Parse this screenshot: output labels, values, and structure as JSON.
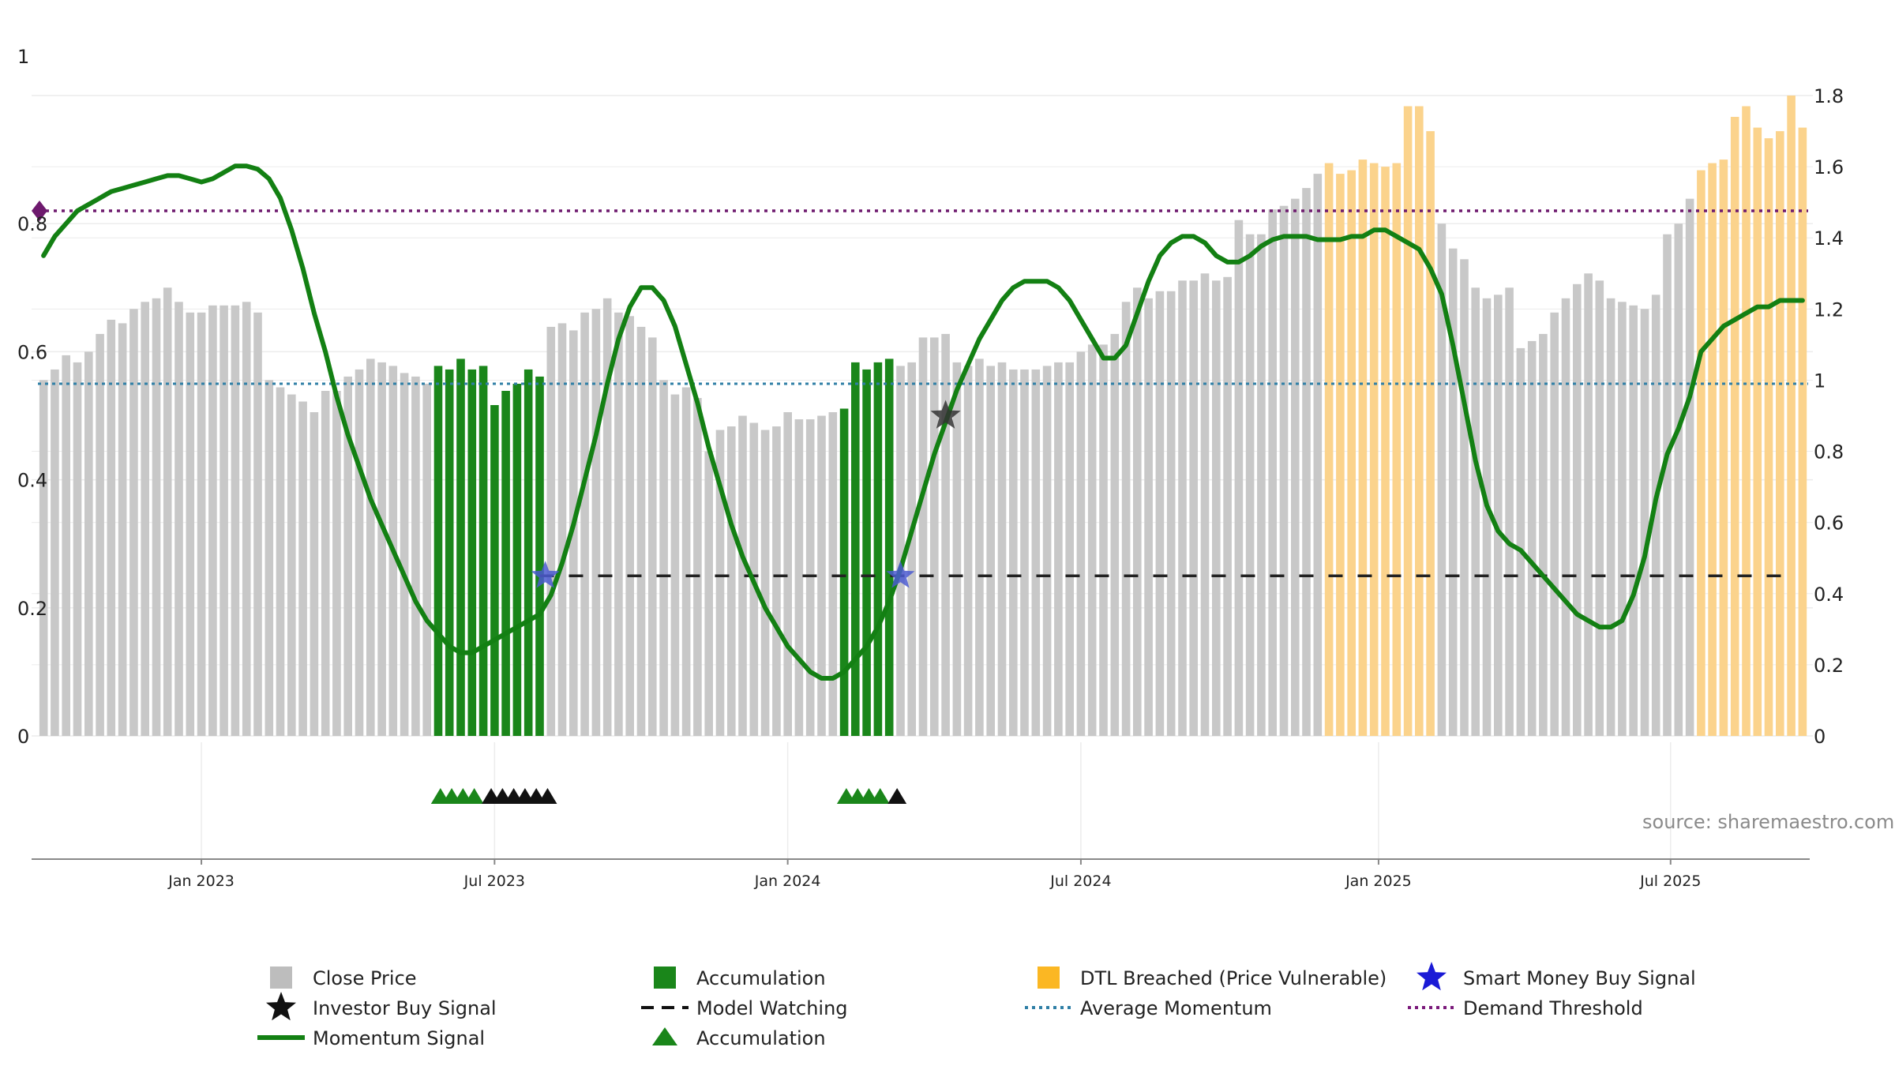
{
  "chart_data": {
    "type": "bar",
    "source": "source: sharemaestro.com",
    "left_axis": {
      "min": 0,
      "max": 1,
      "ticks": [
        "0",
        "0.2",
        "0.4",
        "0.6",
        "0.8",
        "1"
      ]
    },
    "right_axis": {
      "min": 0,
      "max": 1.8,
      "ticks": [
        "0",
        "0.2",
        "0.4",
        "0.6",
        "0.8",
        "1",
        "1.2",
        "1.4",
        "1.6",
        "1.8"
      ]
    },
    "date_ticks": [
      {
        "label": "Jan 2023",
        "week": 14
      },
      {
        "label": "Jul 2023",
        "week": 40
      },
      {
        "label": "Jan 2024",
        "week": 66
      },
      {
        "label": "Jul 2024",
        "week": 92
      },
      {
        "label": "Jan 2025",
        "week": 118.4
      },
      {
        "label": "Jul 2025",
        "week": 144.3
      }
    ],
    "close_price": [
      1.0,
      1.03,
      1.07,
      1.05,
      1.08,
      1.13,
      1.17,
      1.16,
      1.2,
      1.22,
      1.23,
      1.26,
      1.22,
      1.19,
      1.19,
      1.21,
      1.21,
      1.21,
      1.22,
      1.19,
      1.0,
      0.98,
      0.96,
      0.94,
      0.91,
      0.97,
      0.97,
      1.01,
      1.03,
      1.06,
      1.05,
      1.04,
      1.02,
      1.01,
      0.99,
      1.04,
      1.03,
      1.06,
      1.03,
      1.04,
      0.93,
      0.97,
      0.99,
      1.03,
      1.01,
      1.15,
      1.16,
      1.14,
      1.19,
      1.2,
      1.23,
      1.19,
      1.18,
      1.15,
      1.12,
      1.0,
      0.96,
      0.98,
      0.95,
      0.8,
      0.86,
      0.87,
      0.9,
      0.88,
      0.86,
      0.87,
      0.91,
      0.89,
      0.89,
      0.9,
      0.91,
      0.92,
      1.05,
      1.03,
      1.05,
      1.06,
      1.04,
      1.05,
      1.12,
      1.12,
      1.13,
      1.05,
      1.04,
      1.06,
      1.04,
      1.05,
      1.03,
      1.03,
      1.03,
      1.04,
      1.05,
      1.05,
      1.08,
      1.1,
      1.1,
      1.13,
      1.22,
      1.26,
      1.23,
      1.25,
      1.25,
      1.28,
      1.28,
      1.3,
      1.28,
      1.29,
      1.45,
      1.41,
      1.41,
      1.48,
      1.49,
      1.51,
      1.54,
      1.58,
      1.61,
      1.58,
      1.59,
      1.62,
      1.61,
      1.6,
      1.61,
      1.77,
      1.77,
      1.7,
      1.44,
      1.37,
      1.34,
      1.26,
      1.23,
      1.24,
      1.26,
      1.09,
      1.11,
      1.13,
      1.19,
      1.23,
      1.27,
      1.3,
      1.28,
      1.23,
      1.22,
      1.21,
      1.2,
      1.24,
      1.41,
      1.44,
      1.51,
      1.59,
      1.61,
      1.62,
      1.74,
      1.77,
      1.71,
      1.68,
      1.7,
      1.8,
      1.71
    ],
    "accumulation_weeks": [
      [
        35,
        44
      ],
      [
        71,
        75
      ]
    ],
    "dtl_breached_weeks": [
      [
        114,
        123
      ],
      [
        147,
        157
      ]
    ],
    "momentum_signal": [
      0.75,
      0.78,
      0.8,
      0.82,
      0.83,
      0.84,
      0.85,
      0.855,
      0.86,
      0.865,
      0.87,
      0.875,
      0.875,
      0.87,
      0.865,
      0.87,
      0.88,
      0.89,
      0.89,
      0.885,
      0.87,
      0.84,
      0.79,
      0.73,
      0.66,
      0.6,
      0.53,
      0.47,
      0.42,
      0.37,
      0.33,
      0.29,
      0.25,
      0.21,
      0.18,
      0.16,
      0.14,
      0.13,
      0.13,
      0.14,
      0.15,
      0.16,
      0.17,
      0.18,
      0.19,
      0.22,
      0.27,
      0.33,
      0.4,
      0.47,
      0.55,
      0.62,
      0.67,
      0.7,
      0.7,
      0.68,
      0.64,
      0.58,
      0.52,
      0.45,
      0.39,
      0.33,
      0.28,
      0.24,
      0.2,
      0.17,
      0.14,
      0.12,
      0.1,
      0.09,
      0.09,
      0.1,
      0.12,
      0.14,
      0.17,
      0.21,
      0.26,
      0.32,
      0.38,
      0.44,
      0.49,
      0.54,
      0.58,
      0.62,
      0.65,
      0.68,
      0.7,
      0.71,
      0.71,
      0.71,
      0.7,
      0.68,
      0.65,
      0.62,
      0.59,
      0.59,
      0.61,
      0.66,
      0.71,
      0.75,
      0.77,
      0.78,
      0.78,
      0.77,
      0.75,
      0.74,
      0.74,
      0.75,
      0.765,
      0.775,
      0.78,
      0.78,
      0.78,
      0.775,
      0.775,
      0.775,
      0.78,
      0.78,
      0.79,
      0.79,
      0.78,
      0.77,
      0.76,
      0.73,
      0.69,
      0.61,
      0.52,
      0.43,
      0.36,
      0.32,
      0.3,
      0.29,
      0.27,
      0.25,
      0.23,
      0.21,
      0.19,
      0.18,
      0.17,
      0.17,
      0.18,
      0.22,
      0.28,
      0.37,
      0.44,
      0.48,
      0.53,
      0.6,
      0.62,
      0.64,
      0.65,
      0.66,
      0.67,
      0.67,
      0.68,
      0.68,
      0.68
    ],
    "average_momentum": 0.55,
    "demand_threshold": 0.82,
    "model_watching_level": 0.25,
    "model_watching_from_week": 44,
    "investor_buy_signal": {
      "week": 80,
      "value": 0.5
    },
    "smart_money_buy_signal": [
      {
        "week": 44.5,
        "value": 0.25
      },
      {
        "week": 76,
        "value": 0.25
      }
    ],
    "accumulation_markers": [
      {
        "week": 35.2,
        "color": "#1a861a"
      },
      {
        "week": 36.2,
        "color": "#1a861a"
      },
      {
        "week": 37.2,
        "color": "#1a861a"
      },
      {
        "week": 38.2,
        "color": "#1a861a"
      },
      {
        "week": 39.7,
        "color": "#111111"
      },
      {
        "week": 40.7,
        "color": "#111111"
      },
      {
        "week": 41.7,
        "color": "#111111"
      },
      {
        "week": 42.7,
        "color": "#111111"
      },
      {
        "week": 43.7,
        "color": "#111111"
      },
      {
        "week": 44.7,
        "color": "#111111"
      },
      {
        "week": 71.2,
        "color": "#1a861a"
      },
      {
        "week": 72.2,
        "color": "#1a861a"
      },
      {
        "week": 73.2,
        "color": "#1a861a"
      },
      {
        "week": 74.2,
        "color": "#1a861a"
      },
      {
        "week": 75.7,
        "color": "#111111"
      }
    ],
    "legend": [
      {
        "label": "Close Price",
        "symbol": "square",
        "color": "#bdbdbd"
      },
      {
        "label": "Accumulation",
        "symbol": "square",
        "color": "#1a861a"
      },
      {
        "label": "DTL Breached (Price Vulnerable)",
        "symbol": "square",
        "color": "#fbb723"
      },
      {
        "label": "Smart Money Buy Signal",
        "symbol": "star",
        "color": "#1a1ad6"
      },
      {
        "label": "Investor Buy Signal",
        "symbol": "star",
        "color": "#111111"
      },
      {
        "label": "Model Watching",
        "symbol": "dash",
        "color": "#111111"
      },
      {
        "label": "Average Momentum",
        "symbol": "dot",
        "color": "#2f7fa6"
      },
      {
        "label": "Demand Threshold",
        "symbol": "dot",
        "color": "#7b1a7b"
      },
      {
        "label": "Momentum Signal",
        "symbol": "line",
        "color": "#138013"
      },
      {
        "label": "Accumulation",
        "symbol": "triangle",
        "color": "#1a861a"
      }
    ],
    "colors": {
      "close_price": "#c8c8c8",
      "accumulation": "#1a861a",
      "dtl_breached": "#fbd38c",
      "momentum": "#138013",
      "average_momentum": "#2f7fa6",
      "demand_threshold": "#6e1a6e",
      "model_watching": "#222222",
      "smart_money": "#4b5bd0",
      "investor": "#333333",
      "grid": "#ececec",
      "axis": "#888888"
    }
  }
}
